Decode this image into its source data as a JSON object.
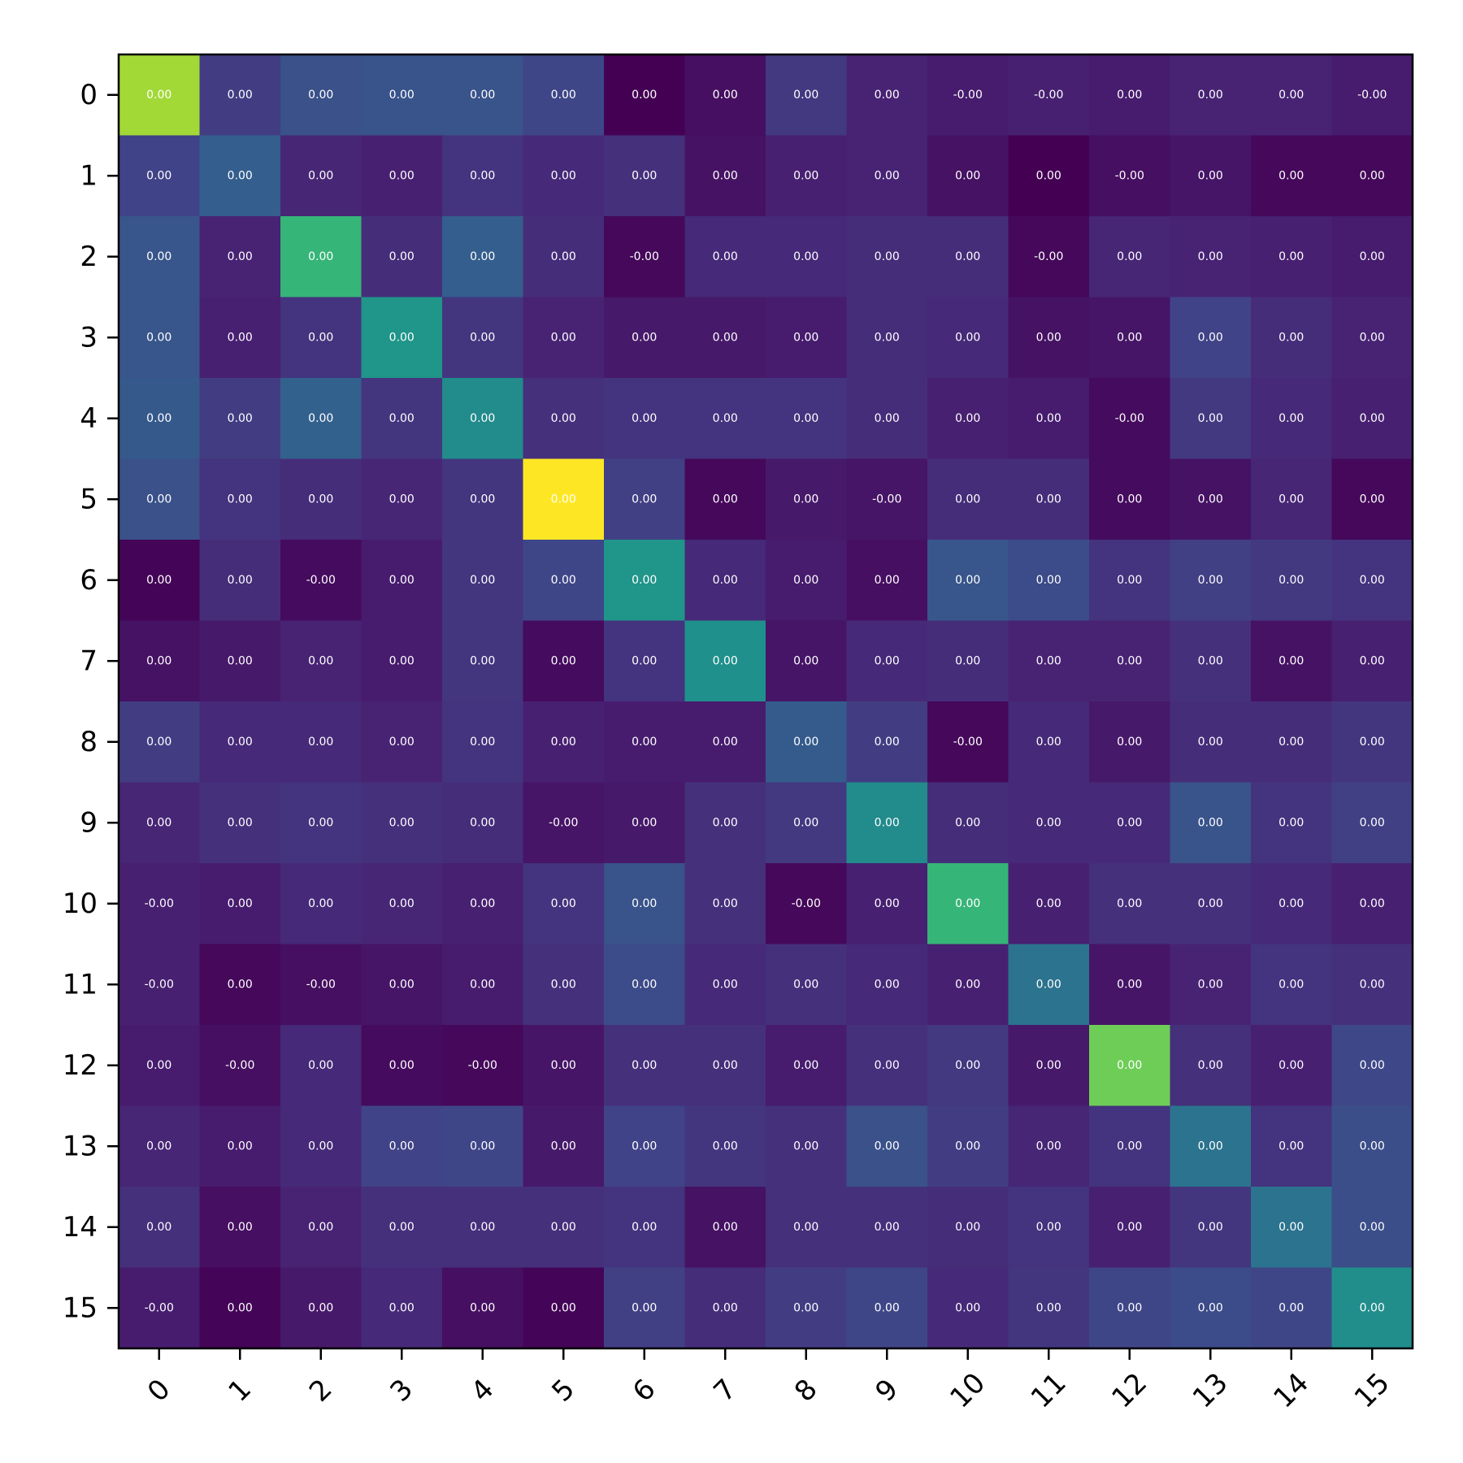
{
  "chart_data": {
    "type": "heatmap",
    "colormap": "viridis",
    "color_range": [
      0,
      1
    ],
    "x_tick_labels": [
      "0",
      "1",
      "2",
      "3",
      "4",
      "5",
      "6",
      "7",
      "8",
      "9",
      "10",
      "11",
      "12",
      "13",
      "14",
      "15"
    ],
    "y_tick_labels": [
      "0",
      "1",
      "2",
      "3",
      "4",
      "5",
      "6",
      "7",
      "8",
      "9",
      "10",
      "11",
      "12",
      "13",
      "14",
      "15"
    ],
    "x_tick_rotation": -45,
    "grid": false,
    "intensity": [
      [
        0.86,
        0.18,
        0.25,
        0.26,
        0.26,
        0.21,
        0.0,
        0.04,
        0.17,
        0.1,
        0.08,
        0.09,
        0.08,
        0.1,
        0.1,
        0.08
      ],
      [
        0.2,
        0.3,
        0.11,
        0.09,
        0.15,
        0.12,
        0.14,
        0.05,
        0.09,
        0.1,
        0.05,
        0.0,
        0.04,
        0.06,
        0.02,
        0.02
      ],
      [
        0.27,
        0.1,
        0.66,
        0.13,
        0.3,
        0.13,
        0.02,
        0.12,
        0.12,
        0.13,
        0.13,
        0.02,
        0.11,
        0.1,
        0.09,
        0.08
      ],
      [
        0.27,
        0.09,
        0.15,
        0.52,
        0.16,
        0.1,
        0.07,
        0.07,
        0.08,
        0.13,
        0.12,
        0.05,
        0.06,
        0.2,
        0.13,
        0.1
      ],
      [
        0.28,
        0.18,
        0.31,
        0.16,
        0.48,
        0.14,
        0.15,
        0.15,
        0.15,
        0.13,
        0.09,
        0.08,
        0.03,
        0.17,
        0.12,
        0.09
      ],
      [
        0.25,
        0.15,
        0.13,
        0.11,
        0.16,
        1.0,
        0.19,
        0.02,
        0.07,
        0.06,
        0.13,
        0.13,
        0.03,
        0.05,
        0.11,
        0.02
      ],
      [
        0.01,
        0.13,
        0.03,
        0.08,
        0.16,
        0.21,
        0.52,
        0.12,
        0.08,
        0.04,
        0.27,
        0.23,
        0.15,
        0.19,
        0.17,
        0.15
      ],
      [
        0.05,
        0.07,
        0.1,
        0.08,
        0.16,
        0.03,
        0.15,
        0.5,
        0.06,
        0.12,
        0.13,
        0.1,
        0.1,
        0.14,
        0.05,
        0.09
      ],
      [
        0.18,
        0.12,
        0.12,
        0.1,
        0.15,
        0.09,
        0.08,
        0.08,
        0.29,
        0.18,
        0.02,
        0.12,
        0.07,
        0.13,
        0.13,
        0.16
      ],
      [
        0.11,
        0.14,
        0.15,
        0.14,
        0.13,
        0.06,
        0.07,
        0.14,
        0.17,
        0.48,
        0.13,
        0.12,
        0.12,
        0.26,
        0.15,
        0.19
      ],
      [
        0.09,
        0.08,
        0.12,
        0.11,
        0.09,
        0.15,
        0.26,
        0.14,
        0.02,
        0.09,
        0.66,
        0.09,
        0.14,
        0.14,
        0.12,
        0.09
      ],
      [
        0.09,
        0.02,
        0.04,
        0.06,
        0.08,
        0.14,
        0.23,
        0.12,
        0.14,
        0.12,
        0.09,
        0.38,
        0.06,
        0.1,
        0.15,
        0.14
      ],
      [
        0.08,
        0.04,
        0.12,
        0.03,
        0.02,
        0.06,
        0.14,
        0.14,
        0.08,
        0.14,
        0.17,
        0.07,
        0.78,
        0.14,
        0.09,
        0.22
      ],
      [
        0.11,
        0.08,
        0.12,
        0.2,
        0.21,
        0.07,
        0.2,
        0.16,
        0.14,
        0.25,
        0.18,
        0.11,
        0.15,
        0.38,
        0.15,
        0.24
      ],
      [
        0.14,
        0.04,
        0.1,
        0.14,
        0.14,
        0.14,
        0.15,
        0.05,
        0.14,
        0.14,
        0.13,
        0.15,
        0.09,
        0.16,
        0.38,
        0.24
      ],
      [
        0.08,
        0.01,
        0.07,
        0.12,
        0.04,
        0.01,
        0.19,
        0.13,
        0.18,
        0.21,
        0.12,
        0.16,
        0.21,
        0.23,
        0.21,
        0.49
      ]
    ],
    "cell_labels": [
      [
        "0.00",
        "0.00",
        "0.00",
        "0.00",
        "0.00",
        "0.00",
        "0.00",
        "0.00",
        "0.00",
        "0.00",
        "-0.00",
        "-0.00",
        "0.00",
        "0.00",
        "0.00",
        "-0.00"
      ],
      [
        "0.00",
        "0.00",
        "0.00",
        "0.00",
        "0.00",
        "0.00",
        "0.00",
        "0.00",
        "0.00",
        "0.00",
        "0.00",
        "0.00",
        "-0.00",
        "0.00",
        "0.00",
        "0.00"
      ],
      [
        "0.00",
        "0.00",
        "0.00",
        "0.00",
        "0.00",
        "0.00",
        "-0.00",
        "0.00",
        "0.00",
        "0.00",
        "0.00",
        "-0.00",
        "0.00",
        "0.00",
        "0.00",
        "0.00"
      ],
      [
        "0.00",
        "0.00",
        "0.00",
        "0.00",
        "0.00",
        "0.00",
        "0.00",
        "0.00",
        "0.00",
        "0.00",
        "0.00",
        "0.00",
        "0.00",
        "0.00",
        "0.00",
        "0.00"
      ],
      [
        "0.00",
        "0.00",
        "0.00",
        "0.00",
        "0.00",
        "0.00",
        "0.00",
        "0.00",
        "0.00",
        "0.00",
        "0.00",
        "0.00",
        "-0.00",
        "0.00",
        "0.00",
        "0.00"
      ],
      [
        "0.00",
        "0.00",
        "0.00",
        "0.00",
        "0.00",
        "0.00",
        "0.00",
        "0.00",
        "0.00",
        "-0.00",
        "0.00",
        "0.00",
        "0.00",
        "0.00",
        "0.00",
        "0.00"
      ],
      [
        "0.00",
        "0.00",
        "-0.00",
        "0.00",
        "0.00",
        "0.00",
        "0.00",
        "0.00",
        "0.00",
        "0.00",
        "0.00",
        "0.00",
        "0.00",
        "0.00",
        "0.00",
        "0.00"
      ],
      [
        "0.00",
        "0.00",
        "0.00",
        "0.00",
        "0.00",
        "0.00",
        "0.00",
        "0.00",
        "0.00",
        "0.00",
        "0.00",
        "0.00",
        "0.00",
        "0.00",
        "0.00",
        "0.00"
      ],
      [
        "0.00",
        "0.00",
        "0.00",
        "0.00",
        "0.00",
        "0.00",
        "0.00",
        "0.00",
        "0.00",
        "0.00",
        "-0.00",
        "0.00",
        "0.00",
        "0.00",
        "0.00",
        "0.00"
      ],
      [
        "0.00",
        "0.00",
        "0.00",
        "0.00",
        "0.00",
        "-0.00",
        "0.00",
        "0.00",
        "0.00",
        "0.00",
        "0.00",
        "0.00",
        "0.00",
        "0.00",
        "0.00",
        "0.00"
      ],
      [
        "-0.00",
        "0.00",
        "0.00",
        "0.00",
        "0.00",
        "0.00",
        "0.00",
        "0.00",
        "-0.00",
        "0.00",
        "0.00",
        "0.00",
        "0.00",
        "0.00",
        "0.00",
        "0.00"
      ],
      [
        "-0.00",
        "0.00",
        "-0.00",
        "0.00",
        "0.00",
        "0.00",
        "0.00",
        "0.00",
        "0.00",
        "0.00",
        "0.00",
        "0.00",
        "0.00",
        "0.00",
        "0.00",
        "0.00"
      ],
      [
        "0.00",
        "-0.00",
        "0.00",
        "0.00",
        "-0.00",
        "0.00",
        "0.00",
        "0.00",
        "0.00",
        "0.00",
        "0.00",
        "0.00",
        "0.00",
        "0.00",
        "0.00",
        "0.00"
      ],
      [
        "0.00",
        "0.00",
        "0.00",
        "0.00",
        "0.00",
        "0.00",
        "0.00",
        "0.00",
        "0.00",
        "0.00",
        "0.00",
        "0.00",
        "0.00",
        "0.00",
        "0.00",
        "0.00"
      ],
      [
        "0.00",
        "0.00",
        "0.00",
        "0.00",
        "0.00",
        "0.00",
        "0.00",
        "0.00",
        "0.00",
        "0.00",
        "0.00",
        "0.00",
        "0.00",
        "0.00",
        "0.00",
        "0.00"
      ],
      [
        "-0.00",
        "0.00",
        "0.00",
        "0.00",
        "0.00",
        "0.00",
        "0.00",
        "0.00",
        "0.00",
        "0.00",
        "0.00",
        "0.00",
        "0.00",
        "0.00",
        "0.00",
        "0.00"
      ]
    ]
  }
}
